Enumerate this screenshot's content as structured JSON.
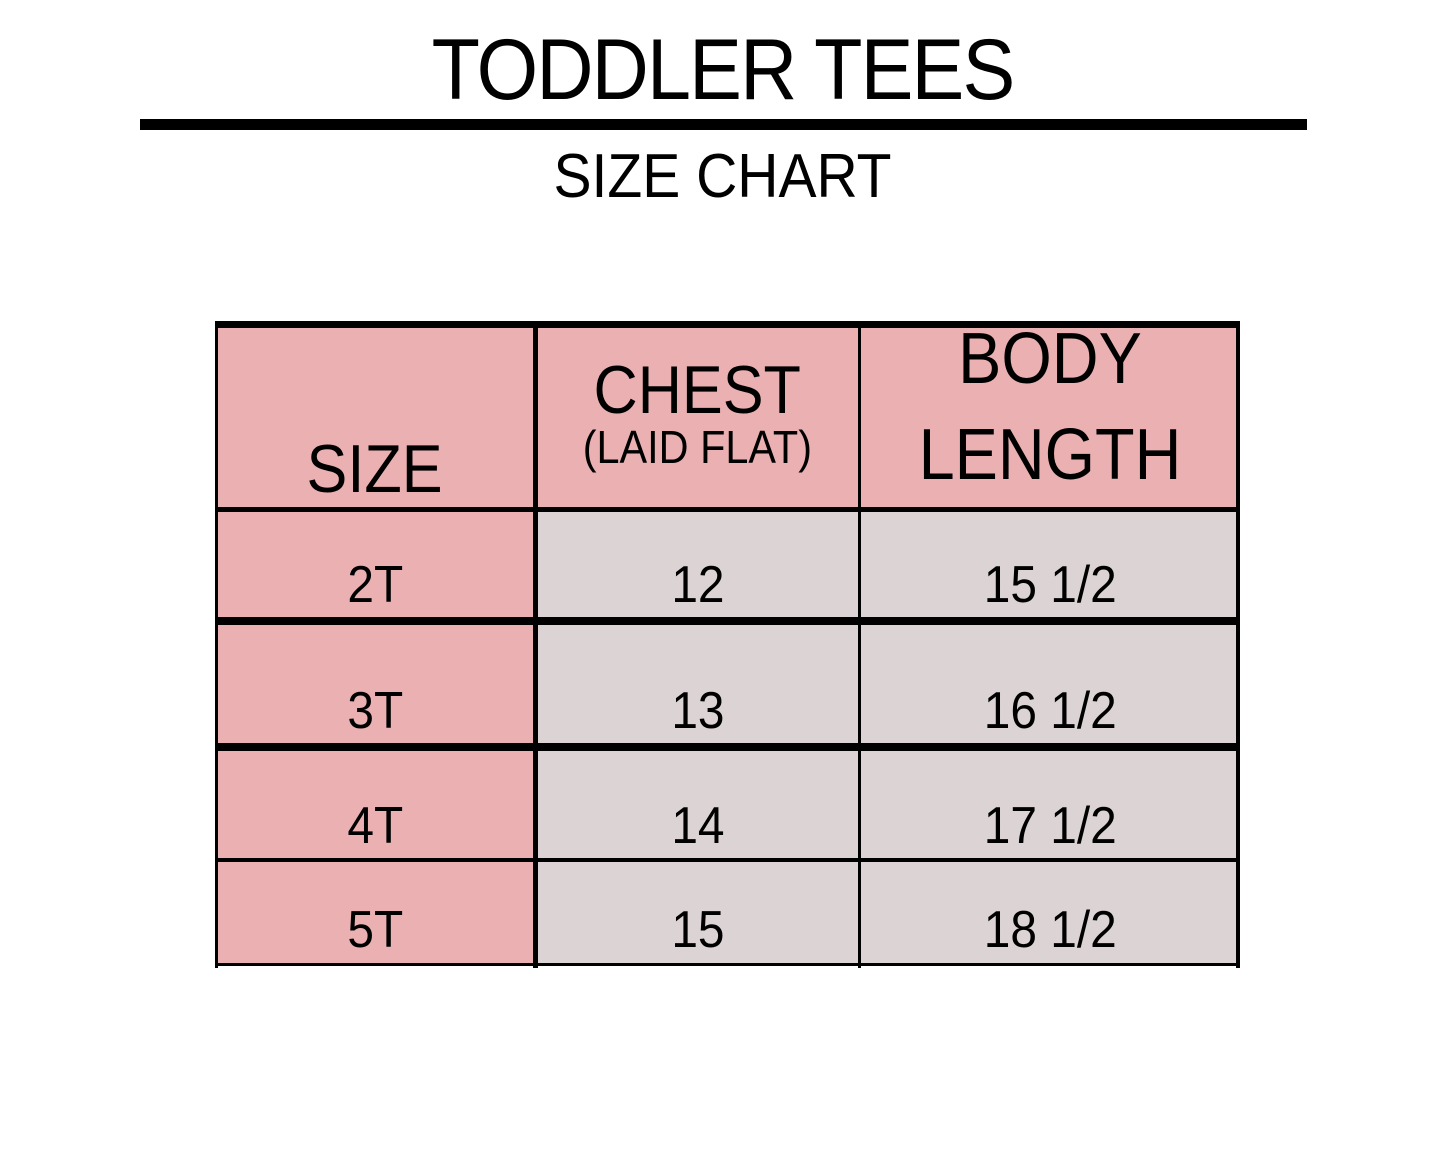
{
  "title": "TODDLER TEES",
  "subtitle": "SIZE CHART",
  "colors": {
    "header": "#ebb0b1",
    "size_column": "#ebb0b1",
    "value_cells": "#dcd3d4"
  },
  "table": {
    "headers": [
      {
        "label": "SIZE",
        "sub": ""
      },
      {
        "label": "CHEST",
        "sub": "(LAID FLAT)"
      },
      {
        "label": "BODY LENGTH",
        "sub": ""
      }
    ],
    "rows": [
      {
        "size": "2T",
        "chest": "12",
        "length": "15 1/2"
      },
      {
        "size": "3T",
        "chest": "13",
        "length": "16 1/2"
      },
      {
        "size": "4T",
        "chest": "14",
        "length": "17 1/2"
      },
      {
        "size": "5T",
        "chest": "15",
        "length": "18 1/2"
      }
    ]
  }
}
